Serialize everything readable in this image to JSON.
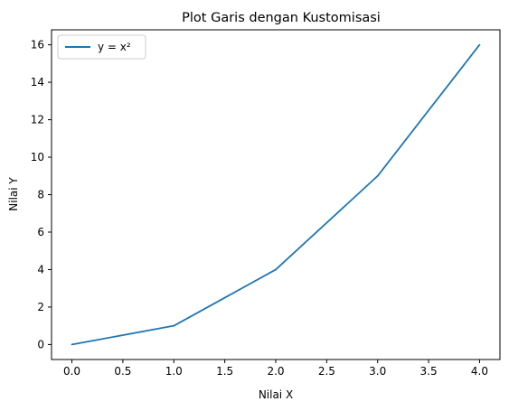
{
  "chart_data": {
    "type": "line",
    "title": "Plot Garis dengan Kustomisasi",
    "xlabel": "Nilai X",
    "ylabel": "Nilai Y",
    "xlim": [
      -0.2,
      4.2
    ],
    "ylim": [
      -0.8,
      16.8
    ],
    "xticks": [
      "0.0",
      "0.5",
      "1.0",
      "1.5",
      "2.0",
      "2.5",
      "3.0",
      "3.5",
      "4.0"
    ],
    "yticks": [
      "0",
      "2",
      "4",
      "6",
      "8",
      "10",
      "12",
      "14",
      "16"
    ],
    "grid": false,
    "legend_position": "top-left",
    "series": [
      {
        "name": "y = x²",
        "color": "#1f77b4",
        "x": [
          0,
          1,
          2,
          3,
          4
        ],
        "y": [
          0,
          1,
          4,
          9,
          16
        ]
      }
    ]
  }
}
